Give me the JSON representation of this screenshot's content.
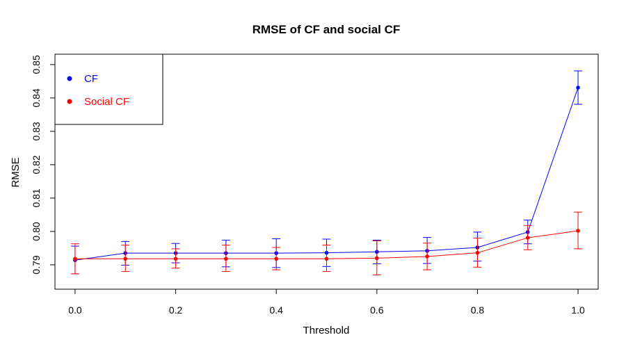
{
  "chart_data": {
    "type": "line",
    "title": "RMSE of CF and social CF",
    "xlabel": "Threshold",
    "ylabel": "RMSE",
    "xlim": [
      -0.04,
      1.04
    ],
    "ylim": [
      0.7827,
      0.8531
    ],
    "x_ticks": [
      "0.0",
      "0.2",
      "0.4",
      "0.6",
      "0.8",
      "1.0"
    ],
    "x_tick_values": [
      0,
      0.2,
      0.4,
      0.6,
      0.8,
      1.0
    ],
    "y_ticks": [
      "0.79",
      "0.80",
      "0.81",
      "0.82",
      "0.83",
      "0.84",
      "0.85"
    ],
    "y_tick_values": [
      0.79,
      0.8,
      0.81,
      0.82,
      0.83,
      0.84,
      0.85
    ],
    "grid": false,
    "legend_position": "top-left",
    "x": [
      0,
      0.1,
      0.2,
      0.3,
      0.4,
      0.5,
      0.6,
      0.7,
      0.8,
      0.9,
      1.0
    ],
    "series": [
      {
        "name": "CF",
        "color": "#0000ff",
        "values": [
          0.7914,
          0.7935,
          0.7935,
          0.7935,
          0.7935,
          0.7936,
          0.7939,
          0.7942,
          0.7952,
          0.7998,
          0.8431
        ],
        "error_low": [
          0.7873,
          0.7899,
          0.7906,
          0.7894,
          0.7892,
          0.7895,
          0.7903,
          0.7904,
          0.7911,
          0.7963,
          0.8381
        ],
        "error_high": [
          0.7956,
          0.797,
          0.7964,
          0.7974,
          0.7978,
          0.7977,
          0.7974,
          0.7982,
          0.7998,
          0.8034,
          0.8481
        ]
      },
      {
        "name": "Social CF",
        "color": "#ff0000",
        "values": [
          0.7918,
          0.7918,
          0.7918,
          0.7918,
          0.7918,
          0.7918,
          0.792,
          0.7925,
          0.7936,
          0.7981,
          0.8002
        ],
        "error_low": [
          0.7873,
          0.788,
          0.789,
          0.788,
          0.7885,
          0.788,
          0.787,
          0.7885,
          0.7893,
          0.7945,
          0.7948
        ],
        "error_high": [
          0.7963,
          0.7959,
          0.7948,
          0.7959,
          0.7952,
          0.7959,
          0.7972,
          0.7965,
          0.798,
          0.8018,
          0.8058
        ]
      }
    ]
  }
}
